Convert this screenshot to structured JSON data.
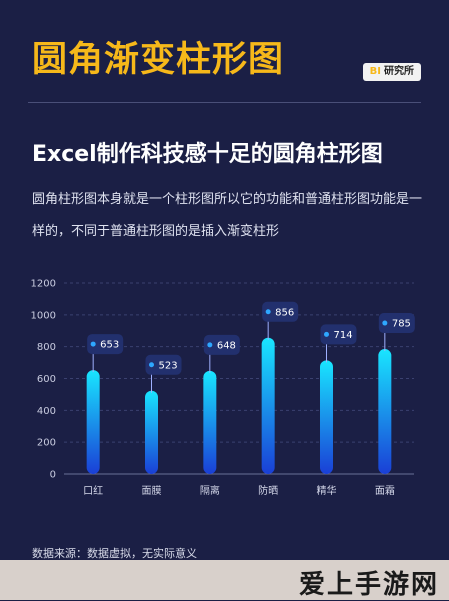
{
  "header": {
    "title": "圆角渐变柱形图",
    "badge_prefix": "BI",
    "badge_text": "研究所"
  },
  "subtitle": "Excel制作科技感十足的圆角柱形图",
  "description": "圆角柱形图本身就是一个柱形图所以它的功能和普通柱形图功能是一样的，不同于普通柱形图的是插入渐变柱形",
  "source_note": "数据来源：数据虚拟，无实际意义",
  "watermark": "爱上手游网",
  "chart_data": {
    "type": "bar",
    "categories": [
      "口红",
      "面膜",
      "隔离",
      "防晒",
      "精华",
      "面霜"
    ],
    "values": [
      653,
      523,
      648,
      856,
      714,
      785
    ],
    "yticks": [
      "0",
      "200",
      "400",
      "600",
      "800",
      "1000",
      "1200"
    ],
    "ylim": [
      0,
      1200
    ],
    "grid": true,
    "colors": {
      "bar_top": "#19e6ff",
      "bar_bottom": "#1a3fd6",
      "label_bg": "#22306e",
      "marker": "#2ea7ff"
    }
  }
}
